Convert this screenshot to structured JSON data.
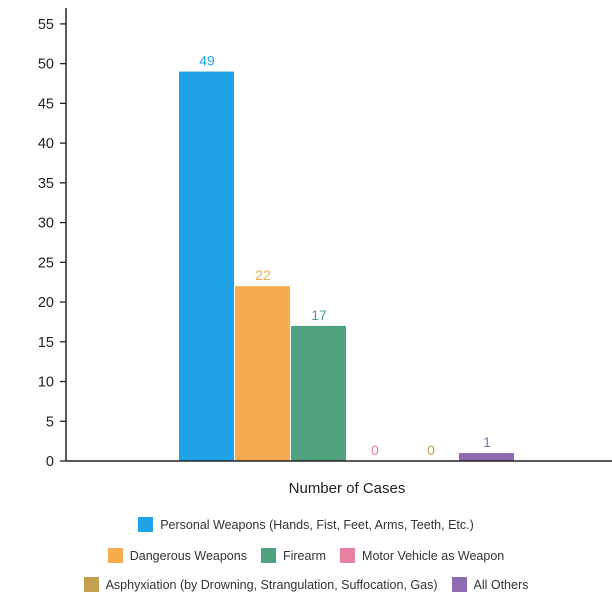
{
  "chart_data": {
    "type": "bar",
    "xlabel": "Number of Cases",
    "ylabel": "",
    "ylim": [
      0,
      57
    ],
    "yticks": [
      0,
      5,
      10,
      15,
      20,
      25,
      30,
      35,
      40,
      45,
      50,
      55
    ],
    "grid": false,
    "legend_position": "bottom",
    "series": [
      {
        "name": "Personal Weapons (Hands, Fist, Feet, Arms, Teeth, Etc.)",
        "value": 49,
        "color": "#1ea3e6"
      },
      {
        "name": "Dangerous Weapons",
        "value": 22,
        "color": "#f5ac4f"
      },
      {
        "name": "Firearm",
        "value": 17,
        "color": "#4ea37e"
      },
      {
        "name": "Motor Vehicle as Weapon",
        "value": 0,
        "color": "#e8809f"
      },
      {
        "name": "Asphyxiation (by Drowning, Strangulation, Suffocation, Gas)",
        "value": 0,
        "color": "#c4a04c"
      },
      {
        "name": "All Others",
        "value": 1,
        "color": "#8e6ab3"
      }
    ]
  }
}
